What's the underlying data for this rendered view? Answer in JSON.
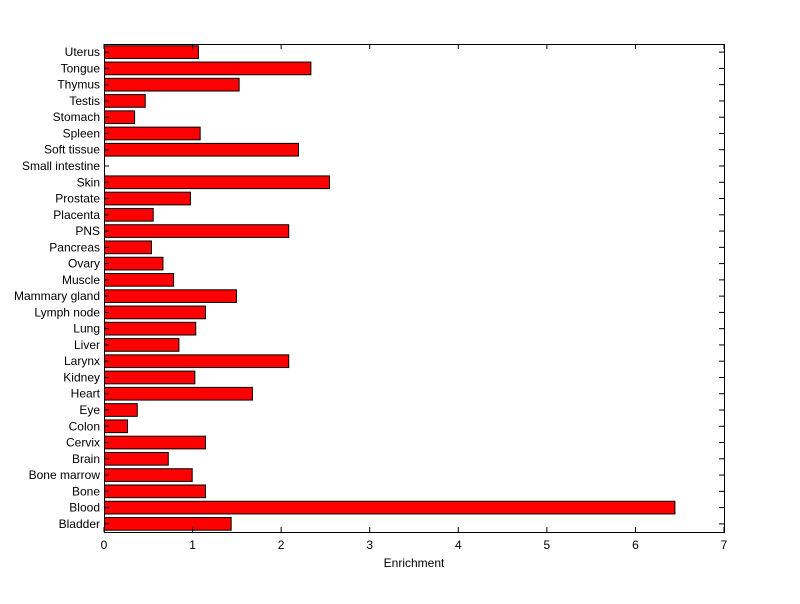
{
  "chart_data": {
    "type": "bar",
    "orientation": "horizontal",
    "title": "",
    "xlabel": "Enrichment",
    "ylabel": "",
    "xlim": [
      0,
      7
    ],
    "xticks": [
      0,
      1,
      2,
      3,
      4,
      5,
      6,
      7
    ],
    "grid": false,
    "legend": "none",
    "bar_color": "#ff0000",
    "bar_edge_color": "#000000",
    "categories": [
      "Bladder",
      "Blood",
      "Bone",
      "Bone marrow",
      "Brain",
      "Cervix",
      "Colon",
      "Eye",
      "Heart",
      "Kidney",
      "Larynx",
      "Liver",
      "Lung",
      "Lymph node",
      "Mammary gland",
      "Muscle",
      "Ovary",
      "Pancreas",
      "PNS",
      "Placenta",
      "Prostate",
      "Skin",
      "Small intestine",
      "Soft tissue",
      "Spleen",
      "Stomach",
      "Testis",
      "Thymus",
      "Tongue",
      "Uterus"
    ],
    "values": [
      1.43,
      6.44,
      1.14,
      0.99,
      0.72,
      1.14,
      0.26,
      0.37,
      1.67,
      1.02,
      2.08,
      0.84,
      1.03,
      1.14,
      1.49,
      0.78,
      0.66,
      0.53,
      2.08,
      0.55,
      0.97,
      2.54,
      0,
      2.19,
      1.08,
      0.34,
      0.46,
      1.52,
      2.33,
      1.06
    ]
  }
}
